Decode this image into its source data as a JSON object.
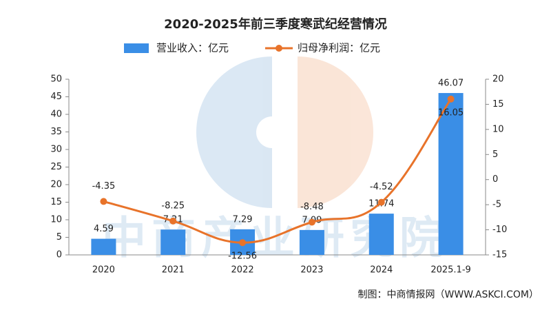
{
  "chart_data": {
    "type": "bar_line",
    "title": "2020-2025年前三季度寒武纪经营情况",
    "categories": [
      "2020",
      "2021",
      "2022",
      "2023",
      "2024",
      "2025.1-9"
    ],
    "series": [
      {
        "name": "营业收入：亿元",
        "type": "bar",
        "color": "#3a8ee6",
        "values": [
          4.59,
          7.21,
          7.29,
          7.09,
          11.74,
          46.07
        ]
      },
      {
        "name": "归母净利润：亿元",
        "type": "line",
        "axis": "y2",
        "color": "#e8732a",
        "values": [
          -4.35,
          -8.25,
          -12.56,
          -8.48,
          -4.52,
          16.05
        ]
      }
    ],
    "ylim": [
      0,
      50
    ],
    "yticks": [
      0,
      5,
      10,
      15,
      20,
      25,
      30,
      35,
      40,
      45,
      50
    ],
    "y2lim": [
      -15,
      20
    ],
    "y2ticks": [
      -15,
      -10,
      -5,
      0,
      5,
      10,
      15,
      20
    ],
    "legend": "top",
    "watermark": "中商产业研究院",
    "source": "制图：中商情报网（WWW.ASKCI.COM）"
  }
}
